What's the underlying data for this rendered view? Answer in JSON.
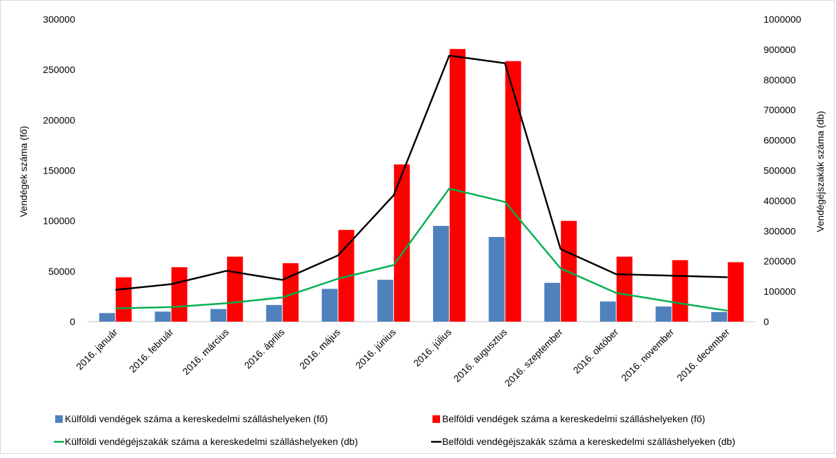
{
  "chart_data": {
    "type": "bar",
    "categories": [
      "2016. január",
      "2016. február",
      "2016. március",
      "2016. április",
      "2016. május",
      "2016. június",
      "2016. július",
      "2016. augusztus",
      "2016. szeptember",
      "2016. október",
      "2016. november",
      "2016. december"
    ],
    "ylabel": "Vendégek száma (fő)",
    "y2label": "Vendégéjszakák száma (db)",
    "ylim": [
      0,
      300000
    ],
    "y2lim": [
      0,
      1000000
    ],
    "yticks": [
      "0",
      "50000",
      "100000",
      "150000",
      "200000",
      "250000",
      "300000"
    ],
    "y2ticks": [
      "0",
      "100000",
      "200000",
      "300000",
      "400000",
      "500000",
      "600000",
      "700000",
      "800000",
      "900000",
      "1000000"
    ],
    "grid": false,
    "legend_position": "bottom",
    "series": [
      {
        "name": "Külföldi vendégek száma a kereskedelmi szálláshelyeken (fő)",
        "kind": "bar",
        "axis": "left",
        "color": "#4f81bd",
        "values": [
          8500,
          10000,
          12500,
          16500,
          32500,
          41500,
          95000,
          84000,
          38500,
          20000,
          15000,
          9500
        ]
      },
      {
        "name": "Belföldi vendégek száma a kereskedelmi szálláshelyeken (fő)",
        "kind": "bar",
        "axis": "left",
        "color": "#ff0000",
        "values": [
          44000,
          54000,
          64500,
          58000,
          91000,
          156000,
          270500,
          258500,
          100000,
          64500,
          61000,
          59000
        ]
      },
      {
        "name": "Külföldi vendégéjszakák száma a kereskedelmi szálláshelyeken (db)",
        "kind": "line",
        "axis": "right",
        "color": "#00b050",
        "values": [
          44000,
          48000,
          61000,
          80000,
          142000,
          187000,
          440000,
          396000,
          176000,
          95000,
          65000,
          36000
        ]
      },
      {
        "name": "Belföldi vendégéjszakák száma a kereskedelmi szálláshelyeken (db)",
        "kind": "line",
        "axis": "right",
        "color": "#000000",
        "values": [
          105000,
          124000,
          168000,
          138000,
          219000,
          418000,
          880000,
          855000,
          240000,
          157000,
          152000,
          147000
        ]
      }
    ]
  }
}
